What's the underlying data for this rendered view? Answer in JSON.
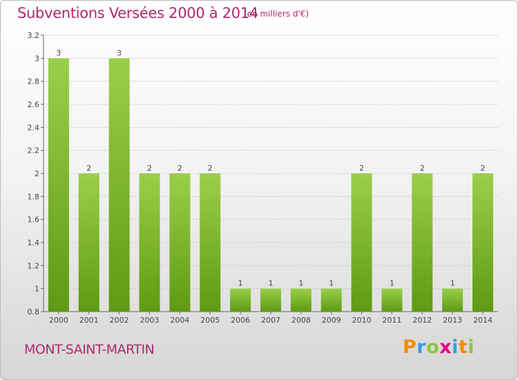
{
  "header": {
    "title": "Subventions Versées 2000 à 2014",
    "subtitle": "(en milliers d'€)"
  },
  "footer": {
    "place": "MONT-SAINT-MARTIN",
    "logo_letters": [
      "P",
      "r",
      "o",
      "x",
      "i",
      "t",
      "i"
    ],
    "logo_colors": [
      "#f28c00",
      "#3a9bd8",
      "#8cc63f",
      "#e5007e",
      "#3a9bd8",
      "#f28c00",
      "#8cc63f"
    ]
  },
  "colors": {
    "bar_light": "#9bcf4a",
    "bar_dark": "#5e9a12",
    "title": "#b0286d",
    "grid": "#c8c8c8"
  },
  "chart_data": {
    "type": "bar",
    "title": "Subventions Versées 2000 à 2014",
    "subtitle": "(en milliers d'€)",
    "xlabel": "",
    "ylabel": "",
    "categories": [
      "2000",
      "2001",
      "2002",
      "2003",
      "2004",
      "2005",
      "2006",
      "2007",
      "2008",
      "2009",
      "2010",
      "2011",
      "2012",
      "2013",
      "2014"
    ],
    "values": [
      3,
      2,
      3,
      2,
      2,
      2,
      1,
      1,
      1,
      1,
      2,
      1,
      2,
      1,
      2
    ],
    "data_labels": [
      "3",
      "2",
      "3",
      "2",
      "2",
      "2",
      "1",
      "1",
      "1",
      "1",
      "2",
      "1",
      "2",
      "1",
      "2"
    ],
    "ylim": [
      0.8,
      3.2
    ],
    "yticks": [
      0.8,
      1,
      1.2,
      1.4,
      1.6,
      1.8,
      2,
      2.2,
      2.4,
      2.6,
      2.8,
      3,
      3.2
    ],
    "ytick_labels": [
      "0.8",
      "1",
      "1.2",
      "1.4",
      "1.6",
      "1.8",
      "2",
      "2.2",
      "2.4",
      "2.6",
      "2.8",
      "3",
      "3.2"
    ],
    "grid": true,
    "legend": "none"
  }
}
